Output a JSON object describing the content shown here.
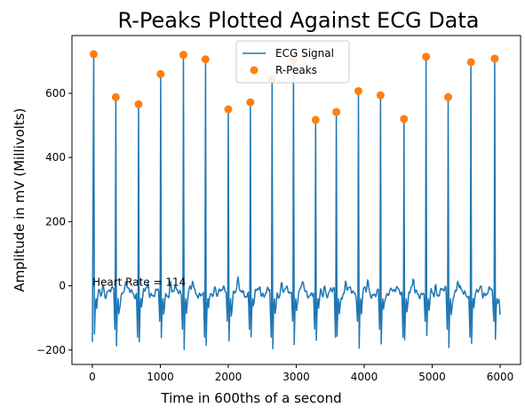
{
  "chart_data": {
    "type": "line",
    "title": "R-Peaks Plotted Against ECG Data",
    "xlabel": "Time in 600ths of a second",
    "ylabel": "Amplitude in mV (Millivolts)",
    "xlim": [
      -300,
      6300
    ],
    "ylim": [
      -245,
      780
    ],
    "x_ticks": [
      0,
      1000,
      2000,
      3000,
      4000,
      5000,
      6000
    ],
    "y_ticks": [
      -200,
      0,
      200,
      400,
      600
    ],
    "grid": false,
    "legend_position": "top-center",
    "annotation": {
      "text": "Heart Rate = 114",
      "x": 0,
      "y": 0
    },
    "series": [
      {
        "name": "ECG Signal",
        "type": "line",
        "color": "#1f77b4",
        "note": "continuous ECG trace"
      },
      {
        "name": "R-Peaks",
        "type": "scatter",
        "color": "#ff7f0e",
        "x": [
          20,
          345,
          680,
          1005,
          1340,
          1665,
          2000,
          2325,
          2645,
          2960,
          3285,
          3590,
          3915,
          4240,
          4585,
          4910,
          5235,
          5570,
          5920
        ],
        "y": [
          722,
          588,
          566,
          660,
          720,
          706,
          550,
          572,
          645,
          705,
          517,
          542,
          607,
          594,
          520,
          714,
          588,
          697,
          708
        ]
      }
    ]
  }
}
